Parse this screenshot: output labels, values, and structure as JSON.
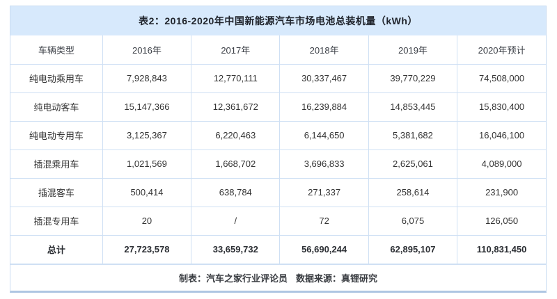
{
  "table": {
    "title": "表2：2016-2020年中国新能源汽车市场电池总装机量（kWh）",
    "columns": [
      "车辆类型",
      "2016年",
      "2017年",
      "2018年",
      "2019年",
      "2020年预计"
    ],
    "rows": [
      {
        "label": "纯电动乘用车",
        "values": [
          "7,928,843",
          "12,770,111",
          "30,337,467",
          "39,770,229",
          "74,508,000"
        ]
      },
      {
        "label": "纯电动客车",
        "values": [
          "15,147,366",
          "12,361,672",
          "16,239,884",
          "14,853,445",
          "15,830,400"
        ]
      },
      {
        "label": "纯电动专用车",
        "values": [
          "3,125,367",
          "6,220,463",
          "6,144,650",
          "5,381,682",
          "16,046,100"
        ]
      },
      {
        "label": "插混乘用车",
        "values": [
          "1,021,569",
          "1,668,702",
          "3,696,833",
          "2,625,061",
          "4,089,000"
        ]
      },
      {
        "label": "插混客车",
        "values": [
          "500,414",
          "638,784",
          "271,337",
          "258,614",
          "231,900"
        ]
      },
      {
        "label": "插混专用车",
        "values": [
          "20",
          "/",
          "72",
          "6,075",
          "126,050"
        ]
      }
    ],
    "total_row": {
      "label": "总计",
      "values": [
        "27,723,578",
        "33,659,732",
        "56,690,244",
        "62,895,107",
        "110,831,450"
      ]
    },
    "footer": {
      "maker": "制表：汽车之家行业评论员",
      "source": "数据来源：真锂研究"
    }
  },
  "chart_data": {
    "type": "table",
    "title": "表2：2016-2020年中国新能源汽车市场电池总装机量（kWh）",
    "categories": [
      "2016年",
      "2017年",
      "2018年",
      "2019年",
      "2020年预计"
    ],
    "series": [
      {
        "name": "纯电动乘用车",
        "values": [
          7928843,
          12770111,
          30337467,
          39770229,
          74508000
        ]
      },
      {
        "name": "纯电动客车",
        "values": [
          15147366,
          12361672,
          16239884,
          14853445,
          15830400
        ]
      },
      {
        "name": "纯电动专用车",
        "values": [
          3125367,
          6220463,
          6144650,
          5381682,
          16046100
        ]
      },
      {
        "name": "插混乘用车",
        "values": [
          1021569,
          1668702,
          3696833,
          2625061,
          4089000
        ]
      },
      {
        "name": "插混客车",
        "values": [
          500414,
          638784,
          271337,
          258614,
          231900
        ]
      },
      {
        "name": "插混专用车",
        "values": [
          20,
          null,
          72,
          6075,
          126050
        ]
      },
      {
        "name": "总计",
        "values": [
          27723578,
          33659732,
          56690244,
          62895107,
          110831450
        ]
      }
    ],
    "unit": "kWh",
    "notes": "插混专用车 2017年 value shown as “/”; 制表：汽车之家行业评论员；数据来源：真锂研究"
  },
  "colors": {
    "title_bar_bg": "#d7e9fc",
    "cell_border": "#cfe0f4",
    "outer_border": "#c9dcf2",
    "bottom_edge": "#aec6e2",
    "body_text": "#333333",
    "title_text": "#20242c"
  }
}
